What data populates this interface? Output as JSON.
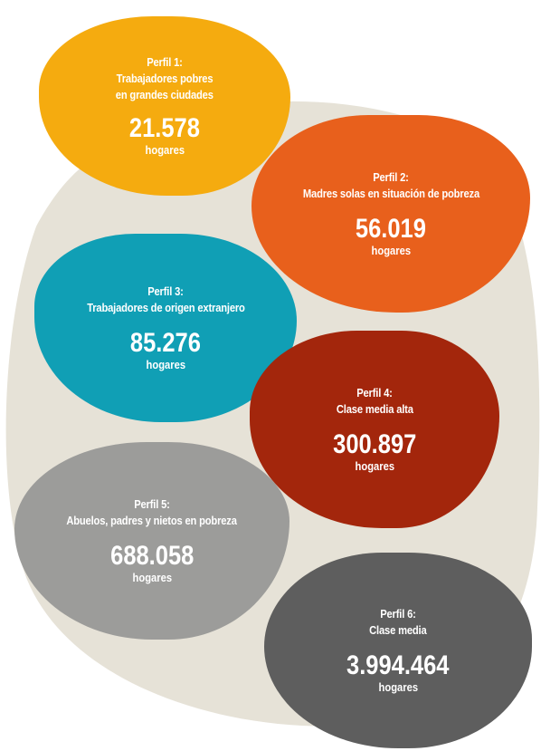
{
  "colors": {
    "background_blob": "#e6e2d7",
    "perfil_1": "#f5ab0f",
    "perfil_2": "#e8601c",
    "perfil_3": "#109fb5",
    "perfil_4": "#a3260c",
    "perfil_5": "#9c9c9a",
    "perfil_6": "#5e5e5e",
    "text": "#ffffff"
  },
  "profiles": [
    {
      "label": "Perfil 1:",
      "title_lines": [
        "Trabajadores pobres",
        "en grandes ciudades"
      ],
      "value": "21.578",
      "unit": "hogares"
    },
    {
      "label": "Perfil 2:",
      "title_lines": [
        "Madres solas en situación de pobreza"
      ],
      "value": "56.019",
      "unit": "hogares"
    },
    {
      "label": "Perfil 3:",
      "title_lines": [
        "Trabajadores de origen extranjero"
      ],
      "value": "85.276",
      "unit": "hogares"
    },
    {
      "label": "Perfil 4:",
      "title_lines": [
        "Clase media alta"
      ],
      "value": "300.897",
      "unit": "hogares"
    },
    {
      "label": "Perfil 5:",
      "title_lines": [
        "Abuelos, padres y nietos en pobreza"
      ],
      "value": "688.058",
      "unit": "hogares"
    },
    {
      "label": "Perfil 6:",
      "title_lines": [
        "Clase media"
      ],
      "value": "3.994.464",
      "unit": "hogares"
    }
  ]
}
